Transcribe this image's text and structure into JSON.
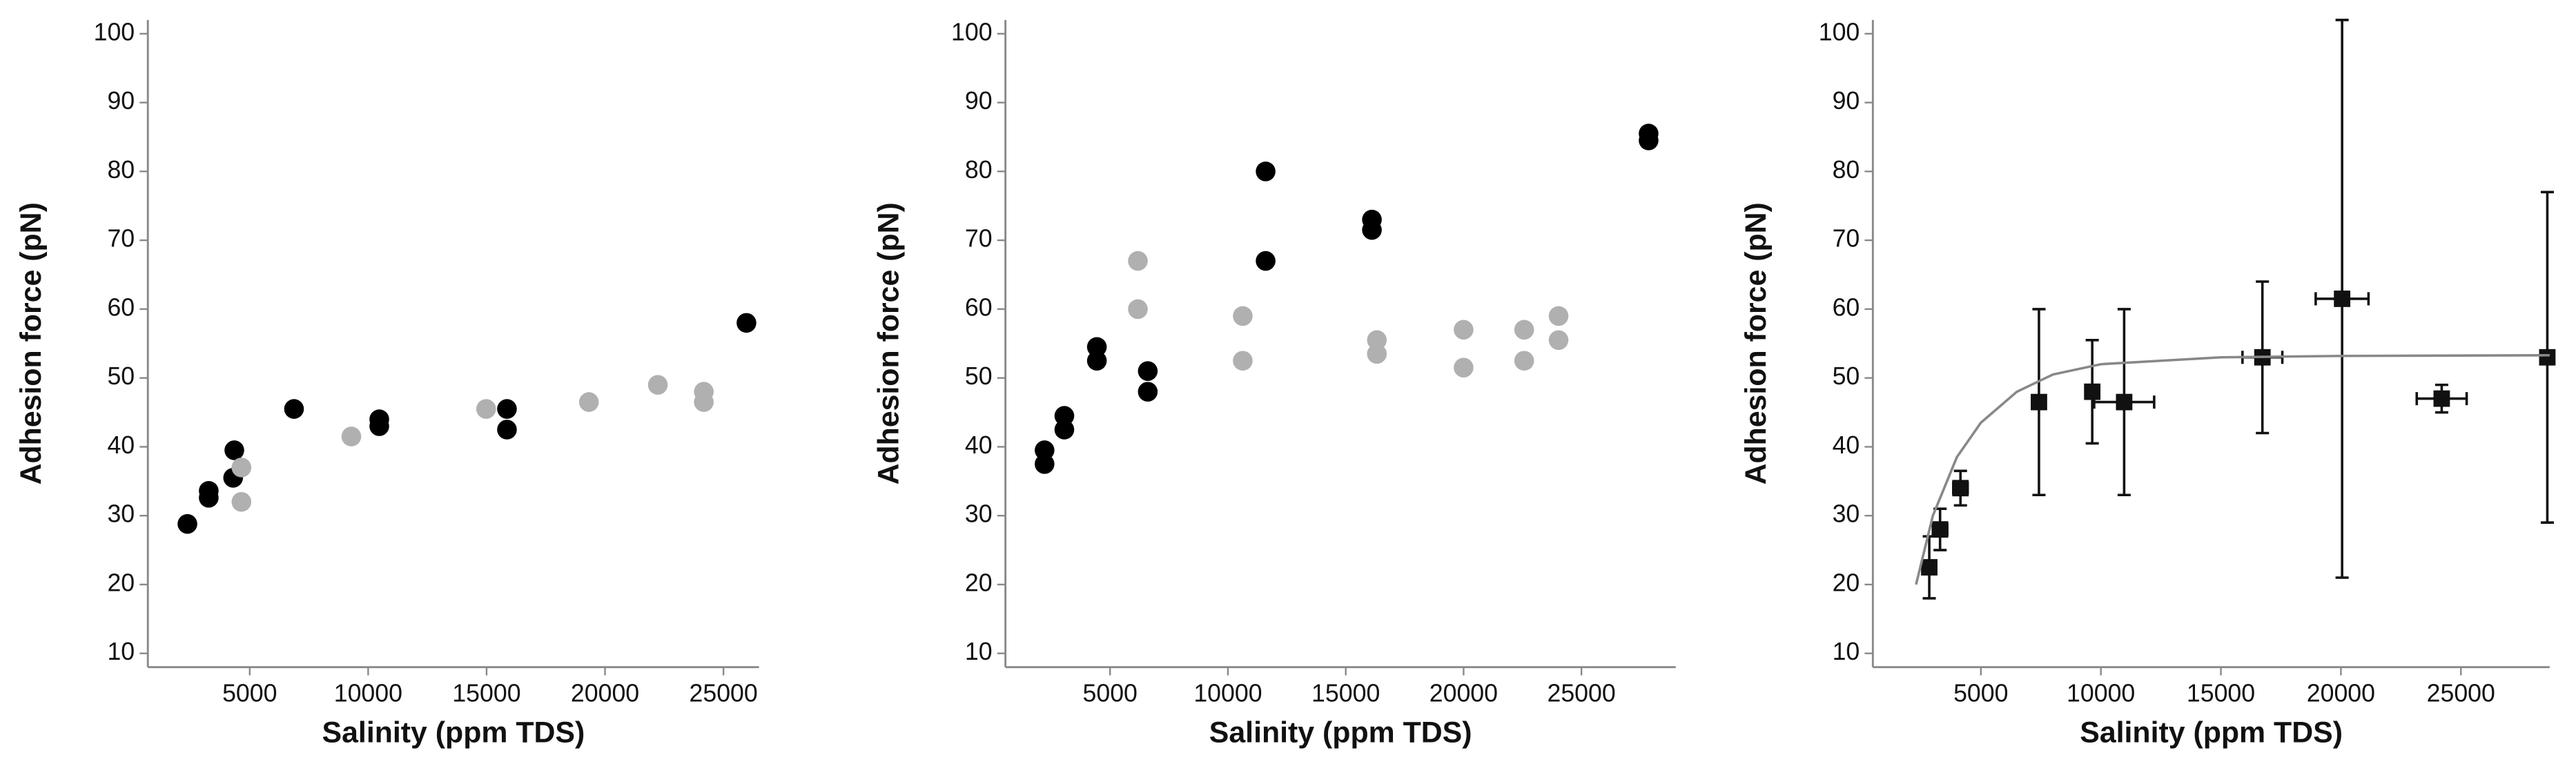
{
  "chart_data": [
    {
      "type": "scatter",
      "xlabel": "Salinity (ppm TDS)",
      "ylabel": "Adhesion force (pN)",
      "xlim": [
        700,
        26500
      ],
      "ylim": [
        8,
        102
      ],
      "xticks": [
        5000,
        10000,
        15000,
        20000,
        25000
      ],
      "yticks": [
        10,
        20,
        30,
        40,
        50,
        60,
        70,
        80,
        90,
        100
      ],
      "series": [
        {
          "color": "#000000",
          "marker": "circle",
          "x": [
            2370,
            3270,
            3270,
            4300,
            4350,
            6870,
            10470,
            10470,
            15860,
            15860,
            25970
          ],
          "y": [
            28.8,
            32.6,
            33.6,
            35.5,
            39.5,
            45.5,
            44,
            43,
            45.5,
            42.5,
            58
          ]
        },
        {
          "color": "#b0b0b0",
          "marker": "circle",
          "x": [
            4650,
            4650,
            9290,
            14980,
            19320,
            22230,
            24170,
            24170
          ],
          "y": [
            37,
            32,
            41.5,
            45.5,
            46.5,
            49,
            48,
            46.5
          ]
        }
      ]
    },
    {
      "type": "scatter",
      "xlabel": "Salinity (ppm TDS)",
      "ylabel": "Adhesion force (pN)",
      "xlim": [
        560,
        29000
      ],
      "ylim": [
        8,
        102
      ],
      "xticks": [
        5000,
        10000,
        15000,
        20000,
        25000
      ],
      "yticks": [
        10,
        20,
        30,
        40,
        50,
        60,
        70,
        80,
        90,
        100
      ],
      "series": [
        {
          "color": "#000000",
          "marker": "circle",
          "x": [
            2220,
            2220,
            3060,
            3060,
            4440,
            4440,
            6600,
            6600,
            11600,
            11600,
            16110,
            16110,
            27850,
            27850
          ],
          "y": [
            37.5,
            39.5,
            42.5,
            44.5,
            52.5,
            54.5,
            48,
            51,
            67,
            80,
            71.5,
            73,
            84.5,
            85.5
          ]
        },
        {
          "color": "#b0b0b0",
          "marker": "circle",
          "x": [
            6180,
            6180,
            10630,
            10630,
            16320,
            16320,
            20000,
            20000,
            22570,
            22570,
            24030,
            24030
          ],
          "y": [
            60,
            67,
            52.5,
            59,
            53.5,
            55.5,
            51.5,
            57,
            52.5,
            57,
            55.5,
            59
          ]
        }
      ]
    },
    {
      "type": "scatter",
      "xlabel": "Salinity (ppm TDS)",
      "ylabel": "Adhesion force (pN)",
      "xlim": [
        500,
        28700
      ],
      "ylim": [
        8,
        102
      ],
      "xticks": [
        5000,
        10000,
        15000,
        20000,
        25000
      ],
      "yticks": [
        10,
        20,
        30,
        40,
        50,
        60,
        70,
        80,
        90,
        100
      ],
      "series": [
        {
          "color": "#111111",
          "marker": "square",
          "x": [
            2850,
            3300,
            4150,
            7420,
            9640,
            10970,
            16730,
            20050,
            24200,
            28600
          ],
          "y": [
            22.5,
            28,
            34,
            46.5,
            48,
            46.5,
            53,
            61.5,
            47,
            53
          ],
          "xerr": [
            0,
            300,
            300,
            0,
            0,
            1250,
            830,
            1100,
            1040,
            0
          ],
          "yerr": [
            4.5,
            3,
            2.5,
            13.5,
            7.5,
            13.5,
            11,
            40.5,
            2,
            24
          ]
        },
        {
          "color": "#888888",
          "marker": "line",
          "x": [
            2300,
            3000,
            4000,
            5000,
            6500,
            8000,
            10000,
            15000,
            20000,
            28700
          ],
          "y": [
            20,
            30,
            38.5,
            43.5,
            48,
            50.5,
            52,
            53,
            53.2,
            53.3
          ]
        }
      ]
    }
  ]
}
